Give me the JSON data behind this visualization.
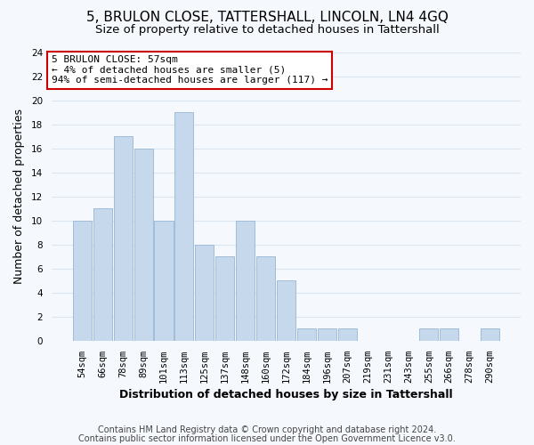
{
  "title": "5, BRULON CLOSE, TATTERSHALL, LINCOLN, LN4 4GQ",
  "subtitle": "Size of property relative to detached houses in Tattershall",
  "xlabel": "Distribution of detached houses by size in Tattershall",
  "ylabel": "Number of detached properties",
  "bar_labels": [
    "54sqm",
    "66sqm",
    "78sqm",
    "89sqm",
    "101sqm",
    "113sqm",
    "125sqm",
    "137sqm",
    "148sqm",
    "160sqm",
    "172sqm",
    "184sqm",
    "196sqm",
    "207sqm",
    "219sqm",
    "231sqm",
    "243sqm",
    "255sqm",
    "266sqm",
    "278sqm",
    "290sqm"
  ],
  "bar_values": [
    10,
    11,
    17,
    16,
    10,
    19,
    8,
    7,
    10,
    7,
    5,
    1,
    1,
    1,
    0,
    0,
    0,
    1,
    1,
    0,
    1
  ],
  "bar_color": "#c5d8ec",
  "bar_edge_color": "#a0bcd8",
  "ylim": [
    0,
    24
  ],
  "yticks": [
    0,
    2,
    4,
    6,
    8,
    10,
    12,
    14,
    16,
    18,
    20,
    22,
    24
  ],
  "annotation_title": "5 BRULON CLOSE: 57sqm",
  "annotation_line1": "← 4% of detached houses are smaller (5)",
  "annotation_line2": "94% of semi-detached houses are larger (117) →",
  "ann_box_color": "#cc0000",
  "footer_line1": "Contains HM Land Registry data © Crown copyright and database right 2024.",
  "footer_line2": "Contains public sector information licensed under the Open Government Licence v3.0.",
  "background_color": "#f5f8fc",
  "grid_color": "#dce6f0",
  "title_fontsize": 11,
  "subtitle_fontsize": 9.5,
  "axis_label_fontsize": 9,
  "tick_fontsize": 7.5,
  "annotation_fontsize": 8,
  "footer_fontsize": 7
}
